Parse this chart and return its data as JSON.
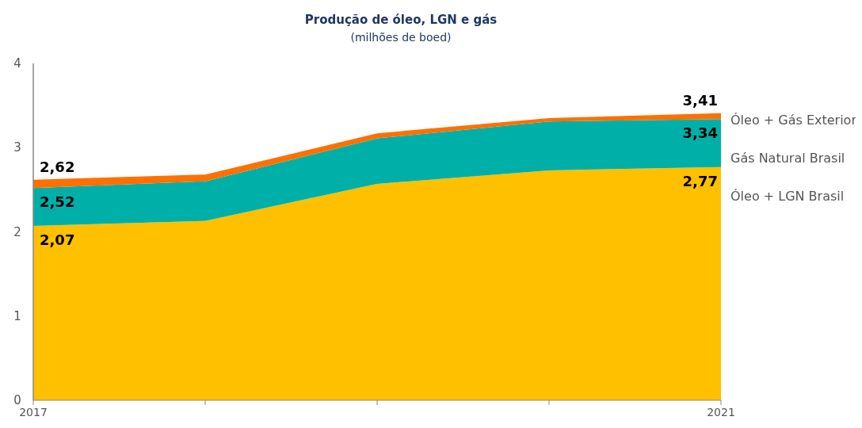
{
  "chart_data": {
    "type": "area",
    "stacked": true,
    "title": "Produção de óleo,  LGN e gás",
    "subtitle": "(milhões de boed)",
    "categories": [
      "2017",
      null,
      null,
      null,
      "2021"
    ],
    "ylim": [
      0,
      4
    ],
    "yticks": [
      0,
      1,
      2,
      3,
      4
    ],
    "grid": false,
    "legend": "right",
    "series": [
      {
        "name": "Óleo + LGN Brasil",
        "color": "#ffc000",
        "values": [
          2.07,
          2.13,
          2.57,
          2.73,
          2.77
        ]
      },
      {
        "name": "Gás Natural Brasil",
        "color": "#00b0a8",
        "values": [
          0.45,
          0.47,
          0.54,
          0.58,
          0.57
        ]
      },
      {
        "name": "Óleo + Gás Exterior",
        "color": "#ff7000",
        "values": [
          0.1,
          0.08,
          0.06,
          0.04,
          0.07
        ]
      }
    ],
    "annotations": [
      {
        "text": "2,62",
        "x": "2017",
        "y": 2.62
      },
      {
        "text": "2,52",
        "x": "2017",
        "y": 2.52
      },
      {
        "text": "2,07",
        "x": "2017",
        "y": 2.07
      },
      {
        "text": "3,41",
        "x": "2021",
        "y": 3.41
      },
      {
        "text": "3,34",
        "x": "2021",
        "y": 3.34
      },
      {
        "text": "2,77",
        "x": "2021",
        "y": 2.77
      }
    ]
  }
}
